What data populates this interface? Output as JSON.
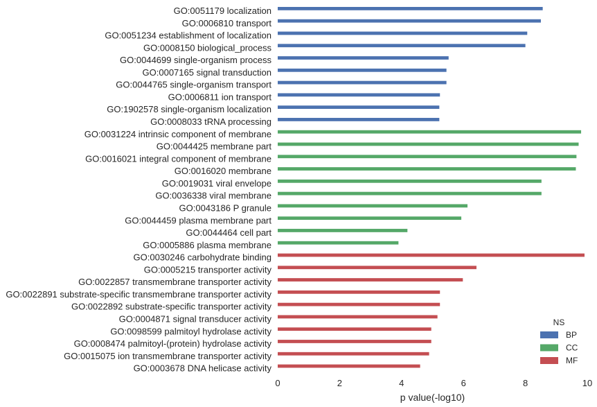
{
  "chart_data": {
    "type": "bar",
    "orientation": "horizontal",
    "xlabel": "p value(-log10)",
    "xlim": [
      0,
      10
    ],
    "xticks": [
      0,
      2,
      4,
      6,
      8,
      10
    ],
    "grid": false,
    "legend": {
      "title": "NS",
      "placement": "bottom-right",
      "entries": [
        {
          "name": "BP",
          "color": "#4c72b0"
        },
        {
          "name": "CC",
          "color": "#55a868"
        },
        {
          "name": "MF",
          "color": "#c44e52"
        }
      ]
    },
    "bars": [
      {
        "label": "GO:0051179 localization",
        "group": "BP",
        "value": 8.56
      },
      {
        "label": "GO:0006810 transport",
        "group": "BP",
        "value": 8.5
      },
      {
        "label": "GO:0051234 establishment of localization",
        "group": "BP",
        "value": 8.06
      },
      {
        "label": "GO:0008150 biological_process",
        "group": "BP",
        "value": 8.0
      },
      {
        "label": "GO:0044699 single-organism process",
        "group": "BP",
        "value": 5.52
      },
      {
        "label": "GO:0007165 signal transduction",
        "group": "BP",
        "value": 5.45
      },
      {
        "label": "GO:0044765 single-organism transport",
        "group": "BP",
        "value": 5.45
      },
      {
        "label": "GO:0006811 ion transport",
        "group": "BP",
        "value": 5.24
      },
      {
        "label": "GO:1902578 single-organism localization",
        "group": "BP",
        "value": 5.22
      },
      {
        "label": "GO:0008033 tRNA processing",
        "group": "BP",
        "value": 5.22
      },
      {
        "label": "GO:0031224 intrinsic component of membrane",
        "group": "CC",
        "value": 9.8
      },
      {
        "label": "GO:0044425 membrane part",
        "group": "CC",
        "value": 9.72
      },
      {
        "label": "GO:0016021 integral component of membrane",
        "group": "CC",
        "value": 9.65
      },
      {
        "label": "GO:0016020 membrane",
        "group": "CC",
        "value": 9.63
      },
      {
        "label": "GO:0019031 viral envelope",
        "group": "CC",
        "value": 8.52
      },
      {
        "label": "GO:0036338 viral membrane",
        "group": "CC",
        "value": 8.52
      },
      {
        "label": "GO:0043186 P granule",
        "group": "CC",
        "value": 6.13
      },
      {
        "label": "GO:0044459 plasma membrane part",
        "group": "CC",
        "value": 5.93
      },
      {
        "label": "GO:0044464 cell part",
        "group": "CC",
        "value": 4.19
      },
      {
        "label": "GO:0005886 plasma membrane",
        "group": "CC",
        "value": 3.9
      },
      {
        "label": "GO:0030246 carbohydrate binding",
        "group": "MF",
        "value": 9.91
      },
      {
        "label": "GO:0005215 transporter activity",
        "group": "MF",
        "value": 6.42
      },
      {
        "label": "GO:0022857 transmembrane transporter activity",
        "group": "MF",
        "value": 5.98
      },
      {
        "label": "GO:0022891 substrate-specific transmembrane transporter activity",
        "group": "MF",
        "value": 5.24
      },
      {
        "label": "GO:0022892 substrate-specific transporter activity",
        "group": "MF",
        "value": 5.24
      },
      {
        "label": "GO:0004871 signal transducer activity",
        "group": "MF",
        "value": 5.16
      },
      {
        "label": "GO:0098599 palmitoyl hydrolase activity",
        "group": "MF",
        "value": 4.96
      },
      {
        "label": "GO:0008474 palmitoyl-(protein) hydrolase activity",
        "group": "MF",
        "value": 4.96
      },
      {
        "label": "GO:0015075 ion transmembrane transporter activity",
        "group": "MF",
        "value": 4.89
      },
      {
        "label": "GO:0003678 DNA helicase activity",
        "group": "MF",
        "value": 4.6
      }
    ]
  }
}
